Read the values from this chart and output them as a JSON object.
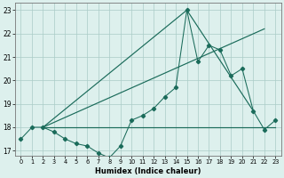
{
  "xlabel": "Humidex (Indice chaleur)",
  "bg_color": "#ddf0ed",
  "grid_color": "#aaccc7",
  "line_color": "#1a6b5a",
  "xlim": [
    -0.5,
    23.5
  ],
  "ylim": [
    16.8,
    23.3
  ],
  "yticks": [
    17,
    18,
    19,
    20,
    21,
    22,
    23
  ],
  "xticks": [
    0,
    1,
    2,
    3,
    4,
    5,
    6,
    7,
    8,
    9,
    10,
    11,
    12,
    13,
    14,
    15,
    16,
    17,
    18,
    19,
    20,
    21,
    22,
    23
  ],
  "series": [
    [
      0,
      17.5
    ],
    [
      1,
      18.0
    ],
    [
      2,
      18.0
    ],
    [
      3,
      17.8
    ],
    [
      4,
      17.5
    ],
    [
      5,
      17.3
    ],
    [
      6,
      17.2
    ],
    [
      7,
      16.9
    ],
    [
      8,
      16.7
    ],
    [
      9,
      17.2
    ],
    [
      10,
      18.3
    ],
    [
      11,
      18.5
    ],
    [
      12,
      18.8
    ],
    [
      13,
      19.3
    ],
    [
      14,
      19.7
    ],
    [
      15,
      23.0
    ],
    [
      16,
      20.8
    ],
    [
      17,
      21.5
    ],
    [
      18,
      21.3
    ],
    [
      19,
      20.2
    ],
    [
      20,
      20.5
    ],
    [
      21,
      18.7
    ],
    [
      22,
      17.9
    ],
    [
      23,
      18.3
    ]
  ],
  "line_peak": [
    [
      2,
      18.0
    ],
    [
      15,
      23.0
    ],
    [
      21,
      18.7
    ]
  ],
  "line_upper": [
    [
      2,
      18.0
    ],
    [
      22,
      22.2
    ]
  ],
  "line_flat": [
    [
      2,
      18.0
    ],
    [
      23,
      18.0
    ]
  ]
}
